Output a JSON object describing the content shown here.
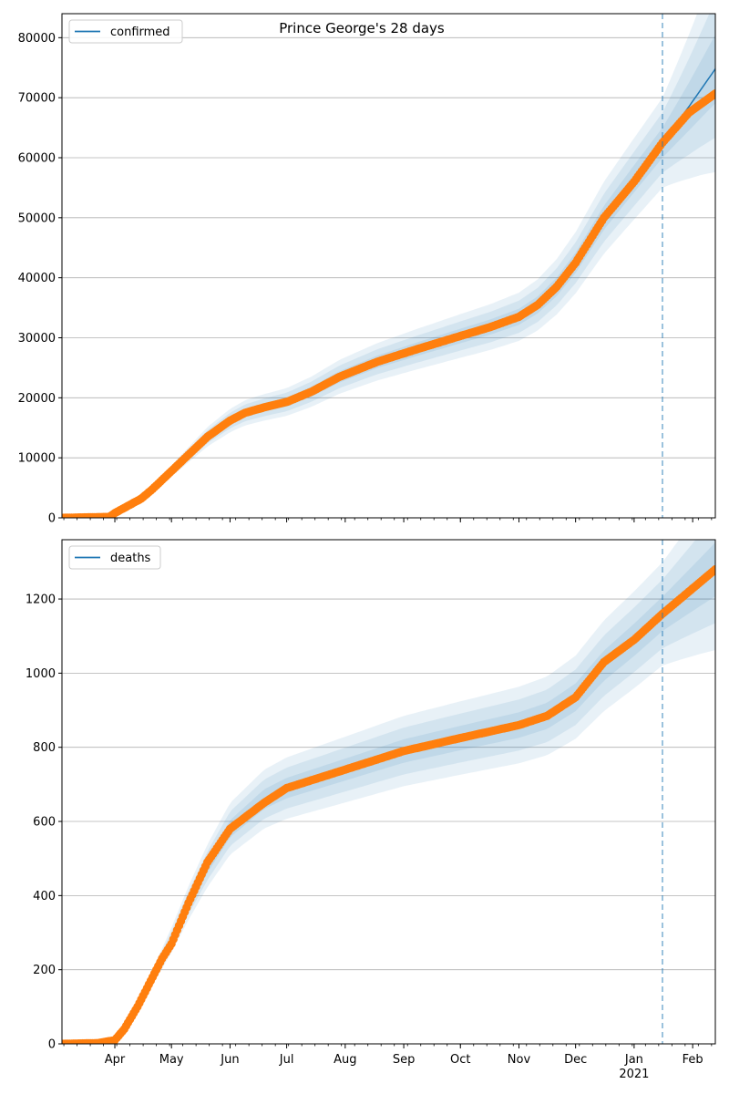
{
  "figure": {
    "title": "Prince George's 28 days"
  },
  "colors": {
    "model_line": "#1f77b4",
    "band": "#1f77b4",
    "observed": "#ff7f0e",
    "forecast_marker": "#1f77b4",
    "grid": "#b0b0b0"
  },
  "x_axis": {
    "month_labels": [
      "Apr",
      "May",
      "Jun",
      "Jul",
      "Aug",
      "Sep",
      "Oct",
      "Nov",
      "Dec",
      "Jan",
      "Feb"
    ],
    "month_days": [
      31,
      61,
      92,
      122,
      153,
      184,
      214,
      245,
      275,
      306,
      337
    ],
    "year_label": "2021",
    "year_under": "Jan",
    "range_days": [
      3,
      349
    ],
    "forecast_day": 321
  },
  "chart_data": [
    {
      "type": "line",
      "legend": "confirmed",
      "legend_position": "top-left",
      "grid": true,
      "ylim": [
        0,
        84000
      ],
      "yticks": [
        0,
        10000,
        20000,
        30000,
        40000,
        50000,
        60000,
        70000,
        80000
      ],
      "ytick_labels": [
        "0",
        "10000",
        "20000",
        "30000",
        "40000",
        "50000",
        "60000",
        "70000",
        "80000"
      ],
      "model_x": [
        3,
        28,
        31,
        45,
        51,
        61,
        70,
        80,
        92,
        100,
        110,
        122,
        135,
        150,
        170,
        190,
        214,
        230,
        245,
        255,
        265,
        275,
        290,
        306,
        321,
        335,
        349
      ],
      "model_y": [
        0,
        150,
        800,
        3200,
        4800,
        7800,
        10500,
        13500,
        16200,
        17500,
        18400,
        19300,
        21000,
        23500,
        26000,
        28000,
        30300,
        31800,
        33500,
        35500,
        38500,
        42500,
        50000,
        56500,
        62500,
        68500,
        74800
      ],
      "band_spread": [
        0.04,
        0.08,
        0.12
      ],
      "band_flare_end": 0.11,
      "observed_x": [
        3,
        28,
        31,
        45,
        51,
        61,
        70,
        80,
        92,
        100,
        110,
        122,
        135,
        150,
        170,
        190,
        214,
        230,
        245,
        255,
        265,
        275,
        290,
        306,
        321,
        335,
        349
      ],
      "observed_y": [
        0,
        150,
        800,
        3200,
        4800,
        7800,
        10500,
        13500,
        16200,
        17500,
        18400,
        19300,
        21000,
        23500,
        26000,
        28000,
        30300,
        31800,
        33500,
        35500,
        38500,
        42500,
        50000,
        56000,
        62500,
        67500,
        70700
      ]
    },
    {
      "type": "line",
      "legend": "deaths",
      "legend_position": "top-left",
      "grid": true,
      "ylim": [
        0,
        1360
      ],
      "yticks": [
        0,
        200,
        400,
        600,
        800,
        1000,
        1200
      ],
      "ytick_labels": [
        "0",
        "200",
        "400",
        "600",
        "800",
        "1000",
        "1200"
      ],
      "model_x": [
        3,
        22,
        31,
        36,
        43,
        50,
        56,
        61,
        70,
        80,
        92,
        110,
        122,
        150,
        184,
        214,
        245,
        260,
        275,
        290,
        306,
        321,
        335,
        349
      ],
      "model_y": [
        0,
        2,
        10,
        40,
        100,
        170,
        230,
        280,
        380,
        480,
        580,
        660,
        690,
        735,
        790,
        825,
        860,
        885,
        935,
        1020,
        1090,
        1160,
        1220,
        1280
      ],
      "band_spread": [
        0.04,
        0.08,
        0.12
      ],
      "band_flare_end": 0.05,
      "observed_x": [
        3,
        22,
        31,
        36,
        43,
        50,
        56,
        61,
        70,
        80,
        92,
        110,
        122,
        150,
        184,
        214,
        245,
        260,
        275,
        290,
        306,
        321,
        335,
        349
      ],
      "observed_y": [
        0,
        2,
        10,
        40,
        100,
        170,
        230,
        270,
        380,
        490,
        580,
        650,
        690,
        735,
        790,
        825,
        860,
        885,
        935,
        1030,
        1090,
        1160,
        1220,
        1280
      ]
    }
  ]
}
